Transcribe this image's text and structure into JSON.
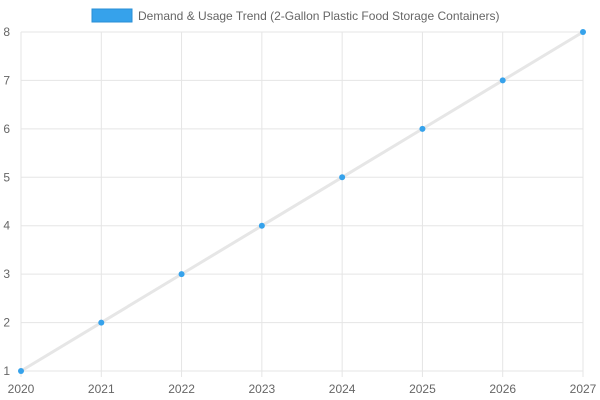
{
  "chart_data": {
    "type": "line",
    "categories": [
      "2020",
      "2021",
      "2022",
      "2023",
      "2024",
      "2025",
      "2026",
      "2027"
    ],
    "series": [
      {
        "name": "Demand & Usage Trend (2-Gallon Plastic Food Storage Containers)",
        "values": [
          1,
          2,
          3,
          4,
          5,
          6,
          7,
          8
        ]
      }
    ],
    "yticks": [
      1,
      2,
      3,
      4,
      5,
      6,
      7,
      8
    ],
    "ylim": [
      1,
      8
    ],
    "grid": true,
    "legend_position": "top",
    "colors": {
      "point": "#36a2eb",
      "line": "#e6e6e6",
      "legend_box": "#36a2eb",
      "grid": "#e5e5e5",
      "axis_text": "#666666"
    }
  }
}
